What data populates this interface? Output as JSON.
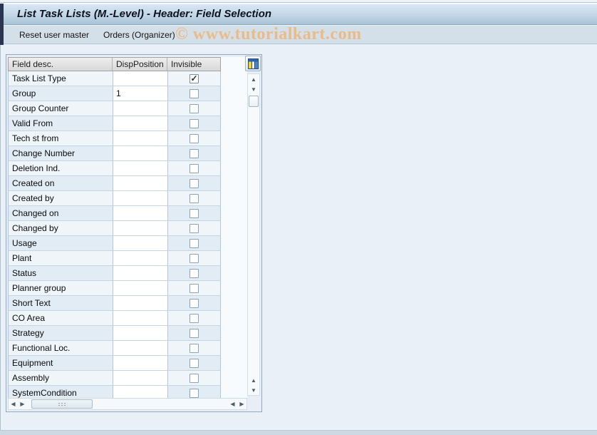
{
  "window": {
    "title": "List Task Lists (M.-Level) - Header: Field Selection"
  },
  "toolbar": {
    "buttons": [
      "Reset user master",
      "Orders (Organizer)"
    ],
    "watermark": "© www.tutorialkart.com"
  },
  "table": {
    "columns": [
      "Field desc.",
      "DispPosition",
      "Invisible"
    ],
    "rows": [
      {
        "field": "Task List Type",
        "disp_position": "",
        "invisible": true
      },
      {
        "field": "Group",
        "disp_position": "1",
        "invisible": false
      },
      {
        "field": "Group Counter",
        "disp_position": "",
        "invisible": false
      },
      {
        "field": "Valid From",
        "disp_position": "",
        "invisible": false
      },
      {
        "field": "Tech st from",
        "disp_position": "",
        "invisible": false
      },
      {
        "field": "Change Number",
        "disp_position": "",
        "invisible": false
      },
      {
        "field": "Deletion Ind.",
        "disp_position": "",
        "invisible": false
      },
      {
        "field": "Created on",
        "disp_position": "",
        "invisible": false
      },
      {
        "field": "Created by",
        "disp_position": "",
        "invisible": false
      },
      {
        "field": "Changed on",
        "disp_position": "",
        "invisible": false
      },
      {
        "field": "Changed by",
        "disp_position": "",
        "invisible": false
      },
      {
        "field": "Usage",
        "disp_position": "",
        "invisible": false
      },
      {
        "field": "Plant",
        "disp_position": "",
        "invisible": false
      },
      {
        "field": "Status",
        "disp_position": "",
        "invisible": false
      },
      {
        "field": "Planner group",
        "disp_position": "",
        "invisible": false
      },
      {
        "field": "Short Text",
        "disp_position": "",
        "invisible": false
      },
      {
        "field": "CO Area",
        "disp_position": "",
        "invisible": false
      },
      {
        "field": "Strategy",
        "disp_position": "",
        "invisible": false
      },
      {
        "field": "Functional Loc.",
        "disp_position": "",
        "invisible": false
      },
      {
        "field": "Equipment",
        "disp_position": "",
        "invisible": false
      },
      {
        "field": "Assembly",
        "disp_position": "",
        "invisible": false
      },
      {
        "field": "SystemCondition",
        "disp_position": "",
        "invisible": false
      }
    ]
  },
  "icons": {
    "check": "✓",
    "up": "▲",
    "down": "▼",
    "left": "◀",
    "right": "▶"
  },
  "colors": {
    "titlebar_top": "#d9e6f2",
    "titlebar_bottom": "#a8c2d8",
    "toolbar_bg": "#d3dfe9",
    "watermark": "#eeb97f",
    "row_blue": "#e2ecf5",
    "panel_border": "#90a9c0",
    "edge_strip": "#2b3450"
  }
}
